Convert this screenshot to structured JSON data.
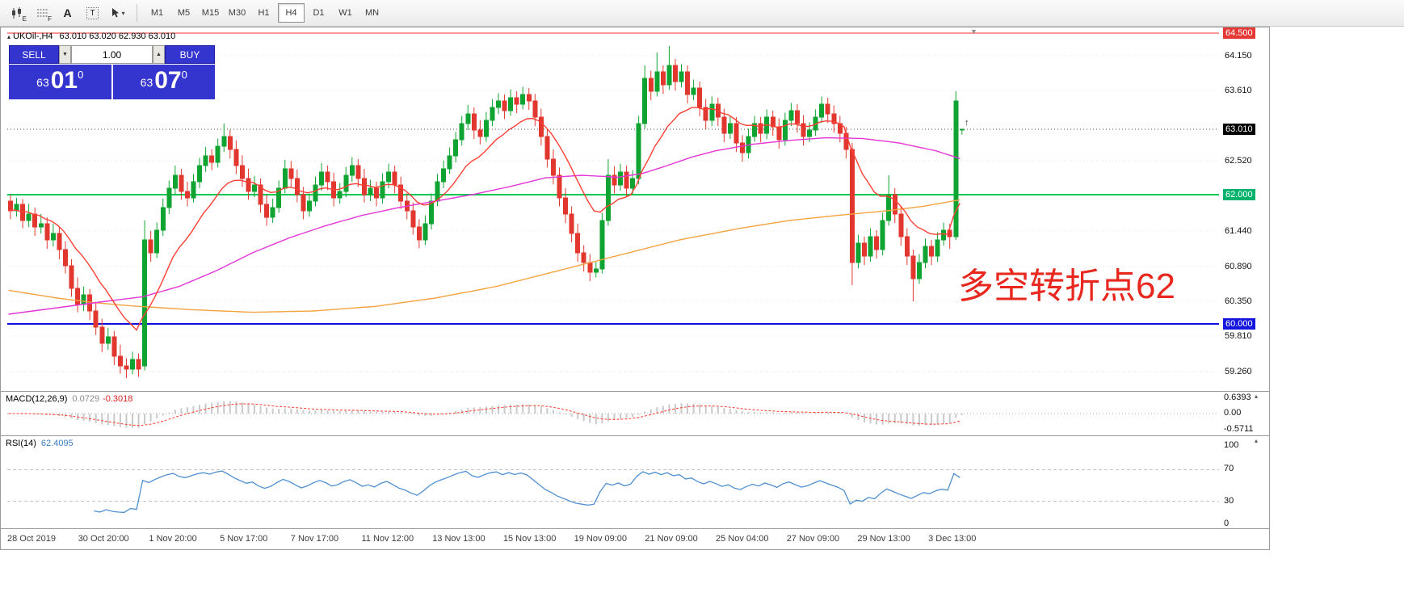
{
  "toolbar": {
    "icons": [
      {
        "name": "candlestick-chart",
        "sub": "E"
      },
      {
        "name": "grid-lines",
        "sub": "F"
      },
      {
        "name": "text-tool",
        "label": "A"
      },
      {
        "name": "textbox-tool",
        "label": "T"
      },
      {
        "name": "cursor-tool",
        "caret": "▾"
      }
    ],
    "timeframes": [
      {
        "label": "M1"
      },
      {
        "label": "M5"
      },
      {
        "label": "M15"
      },
      {
        "label": "M30"
      },
      {
        "label": "H1"
      },
      {
        "label": "H4",
        "active": true
      },
      {
        "label": "D1"
      },
      {
        "label": "W1"
      },
      {
        "label": "MN"
      }
    ]
  },
  "chart": {
    "title_icon": "▴",
    "symbol_title": "UKOil-,H4",
    "ohlc_text": "63.010 63.020 62.930 63.010",
    "shift_marker": "▼",
    "last_bar_marker": "↑",
    "annotation": {
      "text": "多空转折点62",
      "color": "#e8281e"
    },
    "trade_panel": {
      "sell_label": "SELL",
      "buy_label": "BUY",
      "lot_value": "1.00",
      "step_down_glyph": "▼",
      "step_up_glyph": "▲",
      "bid_small": "63",
      "bid_big": "01",
      "bid_sup": "0",
      "ask_small": "63",
      "ask_big": "07",
      "ask_sup": "0",
      "panel_color": "#3434cf"
    },
    "price_axis": {
      "labels": [
        {
          "text": "64.500",
          "price": 64.5,
          "badge": "red"
        },
        {
          "text": "64.150",
          "price": 64.15
        },
        {
          "text": "63.610",
          "price": 63.61
        },
        {
          "text": "63.010",
          "price": 63.01,
          "badge": "black"
        },
        {
          "text": "62.520",
          "price": 62.52
        },
        {
          "text": "62.000",
          "price": 62.0,
          "badge": "green"
        },
        {
          "text": "61.440",
          "price": 61.44
        },
        {
          "text": "60.890",
          "price": 60.89
        },
        {
          "text": "60.350",
          "price": 60.35
        },
        {
          "text": "60.000",
          "price": 60.0,
          "badge": "blue"
        },
        {
          "text": "59.810",
          "price": 59.81
        },
        {
          "text": "59.260",
          "price": 59.26
        }
      ]
    },
    "hlines": [
      {
        "price": 64.5,
        "color": "#ff2d2d",
        "width": 1
      },
      {
        "price": 63.01,
        "color": "#444444",
        "width": 1,
        "dash": "1,3"
      },
      {
        "price": 62.0,
        "color": "#00c853",
        "width": 2
      },
      {
        "price": 60.0,
        "color": "#1010dd",
        "width": 2
      }
    ],
    "time_axis": [
      "28 Oct 2019",
      "30 Oct 20:00",
      "1 Nov 20:00",
      "5 Nov 17:00",
      "7 Nov 17:00",
      "11 Nov 12:00",
      "13 Nov 13:00",
      "15 Nov 13:00",
      "19 Nov 09:00",
      "21 Nov 09:00",
      "25 Nov 04:00",
      "27 Nov 09:00",
      "29 Nov 13:00",
      "3 Dec 13:00"
    ]
  },
  "ui": {
    "badge_colors": {
      "red": "#e53935",
      "black": "#000000",
      "green": "#00b26b",
      "blue": "#1515e0"
    },
    "pane_collapse_glyph": "▴"
  },
  "macd": {
    "label": "MACD(12,26,9)",
    "value1": "0.0729",
    "value2": "-0.3018",
    "scale_top": "0.6393",
    "scale_mid": "0.00",
    "scale_bottom": "-0.5711",
    "params": [
      12,
      26,
      9
    ]
  },
  "rsi": {
    "label": "RSI(14)",
    "value": "62.4095",
    "scale": [
      "100",
      "70",
      "30",
      "0"
    ],
    "period": 14,
    "levels": [
      70,
      30
    ]
  },
  "chart_data": {
    "type": "candlestick",
    "symbol": "UKOil-",
    "timeframe": "H4",
    "ylim": [
      59.16,
      64.5
    ],
    "colors": {
      "bull": "#0fa332",
      "bear": "#e2372e",
      "ma_fast_red": "#ff3f34",
      "ma_mid_magenta": "#e436d6",
      "ma_slow_orange": "#f5a340",
      "macd_hist": "#c9c9c9",
      "macd_signal": "#ff3b30",
      "rsi_line": "#4f8fd0"
    },
    "red_ema_period": 13,
    "ma_magenta_points": [
      [
        0,
        60.15
      ],
      [
        8,
        60.25
      ],
      [
        16,
        60.35
      ],
      [
        22,
        60.42
      ],
      [
        28,
        60.58
      ],
      [
        34,
        60.82
      ],
      [
        40,
        61.1
      ],
      [
        46,
        61.33
      ],
      [
        52,
        61.52
      ],
      [
        58,
        61.68
      ],
      [
        64,
        61.8
      ],
      [
        70,
        61.9
      ],
      [
        76,
        62.0
      ],
      [
        82,
        62.12
      ],
      [
        88,
        62.26
      ],
      [
        94,
        62.3
      ],
      [
        100,
        62.27
      ],
      [
        104,
        62.33
      ],
      [
        108,
        62.45
      ],
      [
        112,
        62.58
      ],
      [
        116,
        62.68
      ],
      [
        122,
        62.78
      ],
      [
        128,
        62.84
      ],
      [
        134,
        62.88
      ],
      [
        140,
        62.87
      ],
      [
        146,
        62.8
      ],
      [
        152,
        62.68
      ],
      [
        156,
        62.56
      ]
    ],
    "ma_orange_points": [
      [
        0,
        60.52
      ],
      [
        8,
        60.4
      ],
      [
        14,
        60.33
      ],
      [
        20,
        60.28
      ],
      [
        30,
        60.22
      ],
      [
        40,
        60.18
      ],
      [
        50,
        60.2
      ],
      [
        60,
        60.27
      ],
      [
        70,
        60.4
      ],
      [
        80,
        60.58
      ],
      [
        90,
        60.82
      ],
      [
        100,
        61.06
      ],
      [
        110,
        61.3
      ],
      [
        120,
        61.48
      ],
      [
        128,
        61.6
      ],
      [
        136,
        61.68
      ],
      [
        144,
        61.75
      ],
      [
        150,
        61.82
      ],
      [
        156,
        61.92
      ]
    ],
    "candles": [
      [
        61.9,
        62.0,
        61.62,
        61.75
      ],
      [
        61.75,
        61.95,
        61.66,
        61.85
      ],
      [
        61.85,
        61.93,
        61.48,
        61.6
      ],
      [
        61.6,
        61.86,
        61.5,
        61.7
      ],
      [
        61.7,
        61.8,
        61.36,
        61.5
      ],
      [
        61.5,
        61.7,
        61.4,
        61.55
      ],
      [
        61.55,
        61.65,
        61.16,
        61.3
      ],
      [
        61.3,
        61.55,
        61.2,
        61.4
      ],
      [
        61.4,
        61.5,
        61.0,
        61.15
      ],
      [
        61.15,
        61.28,
        60.78,
        60.9
      ],
      [
        60.9,
        61.0,
        60.42,
        60.55
      ],
      [
        60.55,
        60.72,
        60.18,
        60.3
      ],
      [
        60.3,
        60.58,
        60.2,
        60.45
      ],
      [
        60.45,
        60.54,
        60.06,
        60.2
      ],
      [
        60.2,
        60.34,
        59.83,
        59.95
      ],
      [
        59.95,
        60.08,
        59.56,
        59.7
      ],
      [
        59.7,
        59.94,
        59.6,
        59.8
      ],
      [
        59.8,
        59.89,
        59.36,
        59.5
      ],
      [
        59.5,
        59.68,
        59.23,
        59.35
      ],
      [
        59.35,
        59.47,
        59.16,
        59.3
      ],
      [
        59.3,
        59.57,
        59.22,
        59.45
      ],
      [
        59.45,
        59.54,
        59.18,
        59.3
      ],
      [
        59.35,
        61.6,
        59.28,
        61.3
      ],
      [
        61.3,
        61.44,
        60.96,
        61.1
      ],
      [
        61.1,
        61.57,
        61.02,
        61.45
      ],
      [
        61.45,
        61.94,
        61.36,
        61.8
      ],
      [
        61.8,
        62.22,
        61.7,
        62.1
      ],
      [
        62.1,
        62.45,
        62.0,
        62.3
      ],
      [
        62.3,
        62.4,
        61.92,
        62.05
      ],
      [
        62.05,
        62.2,
        61.82,
        61.95
      ],
      [
        61.95,
        62.32,
        61.88,
        62.2
      ],
      [
        62.2,
        62.57,
        62.1,
        62.45
      ],
      [
        62.45,
        62.74,
        62.35,
        62.6
      ],
      [
        62.6,
        62.7,
        62.38,
        62.5
      ],
      [
        62.5,
        62.87,
        62.42,
        62.75
      ],
      [
        62.75,
        63.1,
        62.66,
        62.9
      ],
      [
        62.9,
        63.0,
        62.56,
        62.7
      ],
      [
        62.7,
        62.84,
        62.32,
        62.45
      ],
      [
        62.45,
        62.61,
        62.12,
        62.25
      ],
      [
        62.25,
        62.4,
        61.92,
        62.05
      ],
      [
        62.05,
        62.29,
        61.96,
        62.15
      ],
      [
        62.15,
        62.25,
        61.72,
        61.85
      ],
      [
        61.85,
        62.0,
        61.52,
        61.65
      ],
      [
        61.65,
        61.94,
        61.56,
        61.8
      ],
      [
        61.8,
        62.22,
        61.72,
        62.1
      ],
      [
        62.1,
        62.54,
        62.02,
        62.4
      ],
      [
        62.4,
        62.52,
        62.12,
        62.25
      ],
      [
        62.25,
        62.39,
        61.88,
        62.0
      ],
      [
        62.0,
        62.12,
        61.62,
        61.75
      ],
      [
        61.75,
        62.02,
        61.66,
        61.9
      ],
      [
        61.9,
        62.28,
        61.82,
        62.15
      ],
      [
        62.15,
        62.49,
        62.06,
        62.35
      ],
      [
        62.35,
        62.45,
        62.07,
        62.2
      ],
      [
        62.2,
        62.34,
        61.82,
        61.95
      ],
      [
        61.95,
        62.18,
        61.86,
        62.05
      ],
      [
        62.05,
        62.43,
        61.96,
        62.3
      ],
      [
        62.3,
        62.58,
        62.2,
        62.45
      ],
      [
        62.45,
        62.55,
        62.12,
        62.25
      ],
      [
        62.25,
        62.4,
        61.88,
        62.0
      ],
      [
        62.0,
        62.23,
        61.9,
        62.1
      ],
      [
        62.1,
        62.2,
        61.82,
        61.95
      ],
      [
        61.95,
        62.33,
        61.86,
        62.2
      ],
      [
        62.2,
        62.48,
        62.1,
        62.35
      ],
      [
        62.35,
        62.45,
        62.02,
        62.15
      ],
      [
        62.15,
        62.28,
        61.78,
        61.9
      ],
      [
        61.9,
        62.02,
        61.62,
        61.75
      ],
      [
        61.75,
        61.88,
        61.38,
        61.5
      ],
      [
        61.5,
        61.62,
        61.17,
        61.3
      ],
      [
        61.3,
        61.68,
        61.22,
        61.55
      ],
      [
        61.55,
        62.02,
        61.46,
        61.9
      ],
      [
        61.9,
        62.32,
        61.82,
        62.2
      ],
      [
        62.2,
        62.53,
        62.1,
        62.4
      ],
      [
        62.4,
        62.73,
        62.32,
        62.6
      ],
      [
        62.6,
        62.97,
        62.5,
        62.85
      ],
      [
        62.85,
        63.22,
        62.76,
        63.1
      ],
      [
        63.1,
        63.39,
        63.0,
        63.25
      ],
      [
        63.25,
        63.35,
        62.86,
        63.0
      ],
      [
        63.0,
        63.15,
        62.78,
        62.9
      ],
      [
        62.9,
        63.28,
        62.82,
        63.15
      ],
      [
        63.15,
        63.48,
        63.06,
        63.35
      ],
      [
        63.35,
        63.57,
        63.25,
        63.45
      ],
      [
        63.45,
        63.55,
        63.17,
        63.3
      ],
      [
        63.3,
        63.63,
        63.22,
        63.5
      ],
      [
        63.5,
        63.6,
        63.26,
        63.4
      ],
      [
        63.4,
        63.67,
        63.32,
        63.55
      ],
      [
        63.55,
        63.65,
        63.31,
        63.45
      ],
      [
        63.45,
        63.56,
        63.06,
        63.2
      ],
      [
        63.2,
        63.33,
        62.76,
        62.9
      ],
      [
        62.9,
        63.02,
        62.42,
        62.55
      ],
      [
        62.55,
        62.7,
        62.16,
        62.3
      ],
      [
        62.3,
        62.42,
        61.82,
        61.95
      ],
      [
        61.95,
        62.1,
        61.56,
        61.7
      ],
      [
        61.7,
        61.82,
        61.26,
        61.4
      ],
      [
        61.4,
        61.55,
        60.96,
        61.1
      ],
      [
        61.1,
        61.22,
        60.81,
        60.95
      ],
      [
        60.95,
        61.08,
        60.66,
        60.8
      ],
      [
        60.8,
        60.96,
        60.72,
        60.85
      ],
      [
        60.85,
        61.72,
        60.78,
        61.6
      ],
      [
        61.6,
        62.55,
        61.52,
        62.3
      ],
      [
        62.3,
        62.44,
        62.02,
        62.15
      ],
      [
        62.15,
        62.48,
        62.06,
        62.35
      ],
      [
        62.35,
        62.45,
        61.97,
        62.1
      ],
      [
        62.1,
        62.38,
        62.0,
        62.25
      ],
      [
        62.25,
        63.22,
        62.16,
        63.1
      ],
      [
        63.1,
        64.0,
        63.02,
        63.8
      ],
      [
        63.8,
        63.92,
        63.46,
        63.6
      ],
      [
        63.6,
        64.2,
        63.52,
        63.9
      ],
      [
        63.9,
        64.0,
        63.56,
        63.7
      ],
      [
        63.7,
        64.3,
        63.62,
        64.0
      ],
      [
        64.0,
        64.1,
        63.61,
        63.75
      ],
      [
        63.75,
        64.02,
        63.66,
        63.9
      ],
      [
        63.9,
        64.0,
        63.41,
        63.55
      ],
      [
        63.55,
        63.78,
        63.46,
        63.65
      ],
      [
        63.65,
        63.75,
        63.21,
        63.35
      ],
      [
        63.35,
        63.48,
        63.01,
        63.15
      ],
      [
        63.15,
        63.52,
        63.06,
        63.4
      ],
      [
        63.4,
        63.5,
        63.06,
        63.2
      ],
      [
        63.2,
        63.33,
        62.81,
        62.95
      ],
      [
        62.95,
        63.22,
        62.86,
        63.1
      ],
      [
        63.1,
        63.2,
        62.66,
        62.8
      ],
      [
        62.8,
        62.92,
        62.51,
        62.65
      ],
      [
        62.65,
        63.02,
        62.56,
        62.9
      ],
      [
        62.9,
        63.22,
        62.82,
        63.1
      ],
      [
        63.1,
        63.2,
        62.81,
        62.95
      ],
      [
        62.95,
        63.32,
        62.86,
        63.2
      ],
      [
        63.2,
        63.3,
        62.91,
        63.05
      ],
      [
        63.05,
        63.18,
        62.71,
        62.85
      ],
      [
        62.85,
        63.27,
        62.76,
        63.15
      ],
      [
        63.15,
        63.42,
        63.06,
        63.3
      ],
      [
        63.3,
        63.4,
        62.96,
        63.1
      ],
      [
        63.1,
        63.23,
        62.76,
        62.9
      ],
      [
        62.9,
        63.12,
        62.81,
        63.0
      ],
      [
        63.0,
        63.32,
        62.91,
        63.2
      ],
      [
        63.2,
        63.52,
        63.11,
        63.4
      ],
      [
        63.4,
        63.5,
        63.11,
        63.25
      ],
      [
        63.25,
        63.38,
        62.96,
        63.1
      ],
      [
        63.1,
        63.22,
        62.81,
        62.95
      ],
      [
        62.95,
        63.05,
        62.56,
        62.7
      ],
      [
        62.7,
        62.8,
        60.6,
        60.95
      ],
      [
        60.95,
        61.38,
        60.86,
        61.25
      ],
      [
        61.25,
        61.35,
        60.91,
        61.05
      ],
      [
        61.05,
        61.48,
        60.96,
        61.35
      ],
      [
        61.35,
        61.45,
        61.01,
        61.15
      ],
      [
        61.15,
        61.72,
        61.06,
        61.6
      ],
      [
        61.6,
        62.3,
        61.52,
        62.0
      ],
      [
        62.0,
        62.1,
        61.56,
        61.7
      ],
      [
        61.7,
        61.82,
        61.21,
        61.35
      ],
      [
        61.35,
        61.48,
        60.91,
        61.05
      ],
      [
        61.05,
        61.15,
        60.35,
        60.7
      ],
      [
        60.7,
        61.08,
        60.62,
        60.95
      ],
      [
        60.95,
        61.32,
        60.86,
        61.2
      ],
      [
        61.2,
        61.3,
        60.91,
        61.05
      ],
      [
        61.05,
        61.42,
        60.96,
        61.3
      ],
      [
        61.3,
        61.57,
        61.21,
        61.45
      ],
      [
        61.45,
        61.55,
        61.16,
        61.35
      ],
      [
        61.35,
        63.6,
        61.3,
        63.45
      ],
      [
        63.01,
        63.02,
        62.93,
        63.01
      ]
    ]
  }
}
